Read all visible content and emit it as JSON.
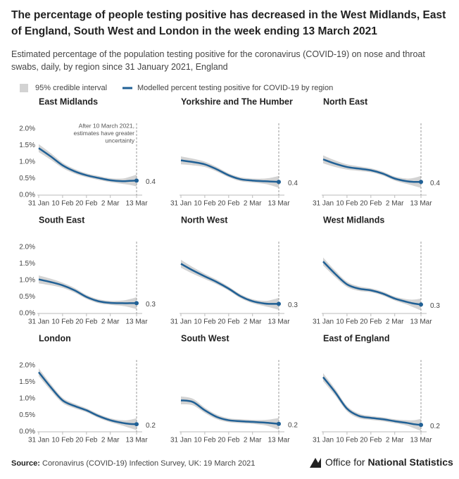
{
  "title": "The percentage of people testing positive has decreased in the West Midlands, East of England, South West and London in the week ending 13 March 2021",
  "subtitle": "Estimated percentage of the population testing positive for the coronavirus (COVID-19) on nose and throat swabs, daily, by region since 31 January 2021, England",
  "legend": [
    {
      "name": "95% credible interval",
      "color": "#d3d3d3"
    },
    {
      "name": "Modelled percent testing positive for COVID-19 by region",
      "color": "#206095"
    }
  ],
  "source_label": "Source:",
  "source": "Coronavirus (COVID-19) Infection Survey, UK: 19 March 2021",
  "logo_prefix": "Office for",
  "logo_bold": "National Statistics",
  "chart_data": [
    {
      "type": "line",
      "title": "East Midlands",
      "x": [
        "31 Jan",
        "5 Feb",
        "10 Feb",
        "15 Feb",
        "20 Feb",
        "25 Feb",
        "2 Mar",
        "7 Mar",
        "10 Mar",
        "13 Mar"
      ],
      "xticks": [
        "31 Jan",
        "10 Feb",
        "20 Feb",
        "2 Mar",
        "13 Mar"
      ],
      "ylim": [
        0,
        2
      ],
      "yticks": [
        {
          "value": 0,
          "label": "0.0%"
        },
        {
          "value": 0.5,
          "label": "0.5%"
        },
        {
          "value": 1,
          "label": "1.0%"
        },
        {
          "value": 1.5,
          "label": "1.5%"
        },
        {
          "value": 2,
          "label": "2.0%"
        }
      ],
      "color": "#206095",
      "band_color": "#d3d3d3",
      "values": [
        1.42,
        1.17,
        0.9,
        0.72,
        0.6,
        0.52,
        0.45,
        0.42,
        0.43,
        0.44
      ],
      "lower": [
        1.3,
        1.07,
        0.82,
        0.65,
        0.54,
        0.46,
        0.39,
        0.34,
        0.31,
        0.26
      ],
      "upper": [
        1.54,
        1.27,
        0.98,
        0.79,
        0.66,
        0.58,
        0.51,
        0.5,
        0.55,
        0.62
      ],
      "value_labels": [
        null,
        null,
        null,
        null,
        null,
        null,
        null,
        null,
        null,
        "0.4"
      ],
      "annotation": [
        "After 10 March 2021,",
        "estimates have greater",
        "uncertainty"
      ]
    },
    {
      "type": "line",
      "title": "Yorkshire and The Humber",
      "x": [
        "31 Jan",
        "5 Feb",
        "10 Feb",
        "15 Feb",
        "20 Feb",
        "25 Feb",
        "2 Mar",
        "7 Mar",
        "10 Mar",
        "13 Mar"
      ],
      "xticks": [
        "31 Jan",
        "10 Feb",
        "20 Feb",
        "2 Mar",
        "13 Mar"
      ],
      "ylim": [
        0,
        2
      ],
      "color": "#206095",
      "band_color": "#d3d3d3",
      "values": [
        1.05,
        1.0,
        0.93,
        0.78,
        0.6,
        0.48,
        0.44,
        0.42,
        0.41,
        0.4
      ],
      "lower": [
        0.93,
        0.9,
        0.85,
        0.71,
        0.54,
        0.42,
        0.38,
        0.34,
        0.29,
        0.22
      ],
      "upper": [
        1.17,
        1.1,
        1.01,
        0.85,
        0.66,
        0.54,
        0.5,
        0.5,
        0.53,
        0.58
      ],
      "value_labels": [
        null,
        null,
        null,
        null,
        null,
        null,
        null,
        null,
        null,
        "0.4"
      ]
    },
    {
      "type": "line",
      "title": "North East",
      "x": [
        "31 Jan",
        "5 Feb",
        "10 Feb",
        "15 Feb",
        "20 Feb",
        "25 Feb",
        "2 Mar",
        "7 Mar",
        "10 Mar",
        "13 Mar"
      ],
      "xticks": [
        "31 Jan",
        "10 Feb",
        "20 Feb",
        "2 Mar",
        "13 Mar"
      ],
      "ylim": [
        0,
        2
      ],
      "color": "#206095",
      "band_color": "#d3d3d3",
      "values": [
        1.08,
        0.95,
        0.85,
        0.8,
        0.75,
        0.65,
        0.5,
        0.42,
        0.4,
        0.4
      ],
      "lower": [
        0.96,
        0.85,
        0.77,
        0.73,
        0.69,
        0.59,
        0.44,
        0.34,
        0.28,
        0.22
      ],
      "upper": [
        1.2,
        1.05,
        0.93,
        0.87,
        0.81,
        0.71,
        0.56,
        0.5,
        0.52,
        0.58
      ],
      "value_labels": [
        null,
        null,
        null,
        null,
        null,
        null,
        null,
        null,
        null,
        "0.4"
      ]
    },
    {
      "type": "line",
      "title": "South East",
      "x": [
        "31 Jan",
        "5 Feb",
        "10 Feb",
        "15 Feb",
        "20 Feb",
        "25 Feb",
        "2 Mar",
        "7 Mar",
        "10 Mar",
        "13 Mar"
      ],
      "xticks": [
        "31 Jan",
        "10 Feb",
        "20 Feb",
        "2 Mar",
        "13 Mar"
      ],
      "ylim": [
        0,
        2
      ],
      "yticks": [
        {
          "value": 0,
          "label": "0.0%"
        },
        {
          "value": 0.5,
          "label": "0.5%"
        },
        {
          "value": 1,
          "label": "1.0%"
        },
        {
          "value": 1.5,
          "label": "1.5%"
        },
        {
          "value": 2,
          "label": "2.0%"
        }
      ],
      "color": "#206095",
      "band_color": "#d3d3d3",
      "values": [
        1.03,
        0.95,
        0.85,
        0.7,
        0.5,
        0.37,
        0.32,
        0.31,
        0.31,
        0.31
      ],
      "lower": [
        0.91,
        0.85,
        0.77,
        0.63,
        0.44,
        0.31,
        0.26,
        0.23,
        0.19,
        0.13
      ],
      "upper": [
        1.15,
        1.05,
        0.93,
        0.77,
        0.56,
        0.43,
        0.38,
        0.39,
        0.43,
        0.49
      ],
      "value_labels": [
        null,
        null,
        null,
        null,
        null,
        null,
        null,
        null,
        null,
        "0.3"
      ]
    },
    {
      "type": "line",
      "title": "North West",
      "x": [
        "31 Jan",
        "5 Feb",
        "10 Feb",
        "15 Feb",
        "20 Feb",
        "25 Feb",
        "2 Mar",
        "7 Mar",
        "10 Mar",
        "13 Mar"
      ],
      "xticks": [
        "31 Jan",
        "10 Feb",
        "20 Feb",
        "2 Mar",
        "13 Mar"
      ],
      "ylim": [
        0,
        2
      ],
      "color": "#206095",
      "band_color": "#d3d3d3",
      "values": [
        1.5,
        1.3,
        1.12,
        0.95,
        0.75,
        0.52,
        0.37,
        0.3,
        0.29,
        0.29
      ],
      "lower": [
        1.38,
        1.2,
        1.04,
        0.88,
        0.69,
        0.46,
        0.31,
        0.22,
        0.17,
        0.11
      ],
      "upper": [
        1.62,
        1.4,
        1.2,
        1.02,
        0.81,
        0.58,
        0.43,
        0.38,
        0.41,
        0.47
      ],
      "value_labels": [
        null,
        null,
        null,
        null,
        null,
        null,
        null,
        null,
        null,
        "0.3"
      ]
    },
    {
      "type": "line",
      "title": "West Midlands",
      "x": [
        "31 Jan",
        "5 Feb",
        "10 Feb",
        "15 Feb",
        "20 Feb",
        "25 Feb",
        "2 Mar",
        "7 Mar",
        "10 Mar",
        "13 Mar"
      ],
      "xticks": [
        "31 Jan",
        "10 Feb",
        "20 Feb",
        "2 Mar",
        "13 Mar"
      ],
      "ylim": [
        0,
        2
      ],
      "color": "#206095",
      "band_color": "#d3d3d3",
      "values": [
        1.57,
        1.2,
        0.88,
        0.75,
        0.7,
        0.6,
        0.45,
        0.35,
        0.3,
        0.27
      ],
      "lower": [
        1.45,
        1.1,
        0.8,
        0.68,
        0.64,
        0.54,
        0.39,
        0.27,
        0.18,
        0.09
      ],
      "upper": [
        1.69,
        1.3,
        0.96,
        0.82,
        0.76,
        0.66,
        0.51,
        0.43,
        0.42,
        0.45
      ],
      "value_labels": [
        null,
        null,
        null,
        null,
        null,
        null,
        null,
        null,
        null,
        "0.3"
      ]
    },
    {
      "type": "line",
      "title": "London",
      "x": [
        "31 Jan",
        "5 Feb",
        "10 Feb",
        "15 Feb",
        "20 Feb",
        "25 Feb",
        "2 Mar",
        "7 Mar",
        "10 Mar",
        "13 Mar"
      ],
      "xticks": [
        "31 Jan",
        "10 Feb",
        "20 Feb",
        "2 Mar",
        "13 Mar"
      ],
      "ylim": [
        0,
        2
      ],
      "yticks": [
        {
          "value": 0,
          "label": "0.0%"
        },
        {
          "value": 0.5,
          "label": "0.5%"
        },
        {
          "value": 1,
          "label": "1.0%"
        },
        {
          "value": 1.5,
          "label": "1.5%"
        },
        {
          "value": 2,
          "label": "2.0%"
        }
      ],
      "color": "#206095",
      "band_color": "#d3d3d3",
      "values": [
        1.8,
        1.35,
        0.95,
        0.78,
        0.65,
        0.48,
        0.35,
        0.27,
        0.24,
        0.23
      ],
      "lower": [
        1.68,
        1.25,
        0.87,
        0.71,
        0.59,
        0.42,
        0.29,
        0.19,
        0.12,
        0.05
      ],
      "upper": [
        1.92,
        1.45,
        1.03,
        0.85,
        0.71,
        0.54,
        0.41,
        0.35,
        0.36,
        0.41
      ],
      "value_labels": [
        null,
        null,
        null,
        null,
        null,
        null,
        null,
        null,
        null,
        "0.2"
      ]
    },
    {
      "type": "line",
      "title": "South West",
      "x": [
        "31 Jan",
        "5 Feb",
        "10 Feb",
        "15 Feb",
        "20 Feb",
        "25 Feb",
        "2 Mar",
        "7 Mar",
        "10 Mar",
        "13 Mar"
      ],
      "xticks": [
        "31 Jan",
        "10 Feb",
        "20 Feb",
        "2 Mar",
        "13 Mar"
      ],
      "ylim": [
        0,
        2
      ],
      "color": "#206095",
      "band_color": "#d3d3d3",
      "values": [
        0.95,
        0.9,
        0.65,
        0.45,
        0.35,
        0.32,
        0.3,
        0.28,
        0.26,
        0.24
      ],
      "lower": [
        0.83,
        0.8,
        0.57,
        0.38,
        0.29,
        0.26,
        0.24,
        0.2,
        0.14,
        0.06
      ],
      "upper": [
        1.07,
        1.0,
        0.73,
        0.52,
        0.41,
        0.38,
        0.36,
        0.36,
        0.38,
        0.42
      ],
      "value_labels": [
        null,
        null,
        null,
        null,
        null,
        null,
        null,
        null,
        null,
        "0.2"
      ]
    },
    {
      "type": "line",
      "title": "East of England",
      "x": [
        "31 Jan",
        "5 Feb",
        "10 Feb",
        "15 Feb",
        "20 Feb",
        "25 Feb",
        "2 Mar",
        "7 Mar",
        "10 Mar",
        "13 Mar"
      ],
      "xticks": [
        "31 Jan",
        "10 Feb",
        "20 Feb",
        "2 Mar",
        "13 Mar"
      ],
      "ylim": [
        0,
        2
      ],
      "color": "#206095",
      "band_color": "#d3d3d3",
      "values": [
        1.65,
        1.2,
        0.7,
        0.48,
        0.42,
        0.38,
        0.32,
        0.27,
        0.23,
        0.21
      ],
      "lower": [
        1.53,
        1.1,
        0.62,
        0.41,
        0.36,
        0.32,
        0.26,
        0.19,
        0.11,
        0.03
      ],
      "upper": [
        1.77,
        1.3,
        0.78,
        0.55,
        0.48,
        0.44,
        0.38,
        0.35,
        0.35,
        0.39
      ],
      "value_labels": [
        null,
        null,
        null,
        null,
        null,
        null,
        null,
        null,
        null,
        "0.2"
      ]
    }
  ]
}
